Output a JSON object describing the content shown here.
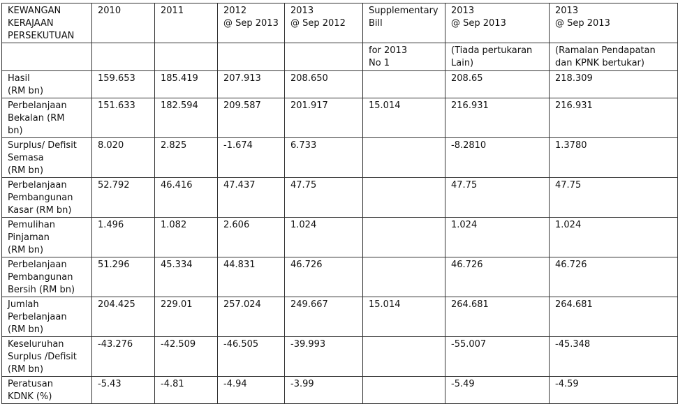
{
  "header": {
    "row1": [
      "KEWANGAN\nKERAJAAN\nPERSEKUTUAN",
      "2010",
      "2011",
      "2012\n@ Sep 2013",
      "2013\n@ Sep 2012",
      "Supplementary\nBill",
      "2013\n@ Sep 2013",
      "2013\n@ Sep 2013"
    ],
    "row2": [
      "",
      "",
      "",
      "",
      "",
      "for 2013\nNo 1",
      "(Tiada pertukaran\nLain)",
      "(Ramalan Pendapatan\ndan KPNK bertukar)"
    ]
  },
  "rows": [
    {
      "label": "Hasil\n(RM bn)",
      "values": [
        "159.653",
        "185.419",
        "207.913",
        "208.650",
        "",
        "208.65",
        "218.309"
      ]
    },
    {
      "label": "Perbelanjaan\nBekalan  (RM\nbn)",
      "values": [
        "151.633",
        "182.594",
        "209.587",
        "201.917",
        "15.014",
        "216.931",
        "216.931"
      ]
    },
    {
      "label": "Surplus/ Defisit\nSemasa\n(RM bn)",
      "values": [
        "8.020",
        "2.825",
        "-1.674",
        "6.733",
        "",
        "-8.2810",
        "1.3780"
      ]
    },
    {
      "label": "Perbelanjaan\nPembangunan\nKasar (RM bn)",
      "values": [
        "52.792",
        "46.416",
        "47.437",
        "47.75",
        "",
        "47.75",
        "47.75"
      ]
    },
    {
      "label": "Pemulihan\nPinjaman\n(RM bn)",
      "values": [
        "1.496",
        "1.082",
        "2.606",
        "1.024",
        "",
        "1.024",
        "1.024"
      ]
    },
    {
      "label": "Perbelanjaan\nPembangunan\nBersih (RM bn)",
      "values": [
        "51.296",
        "45.334",
        "44.831",
        "46.726",
        "",
        "46.726",
        "46.726"
      ]
    },
    {
      "label": "Jumlah\nPerbelanjaan\n(RM bn)",
      "values": [
        "204.425",
        "229.01",
        "257.024",
        "249.667",
        "15.014",
        "264.681",
        "264.681"
      ]
    },
    {
      "label": "Keseluruhan\nSurplus /Defisit\n(RM bn)",
      "values": [
        "-43.276",
        "-42.509",
        "-46.505",
        "-39.993",
        "",
        "-55.007",
        "-45.348"
      ]
    },
    {
      "label": "Peratusan\nKDNK  (%)",
      "values": [
        "-5.43",
        "-4.81",
        "-4.94",
        "-3.99",
        "",
        "-5.49",
        "-4.59"
      ]
    }
  ]
}
